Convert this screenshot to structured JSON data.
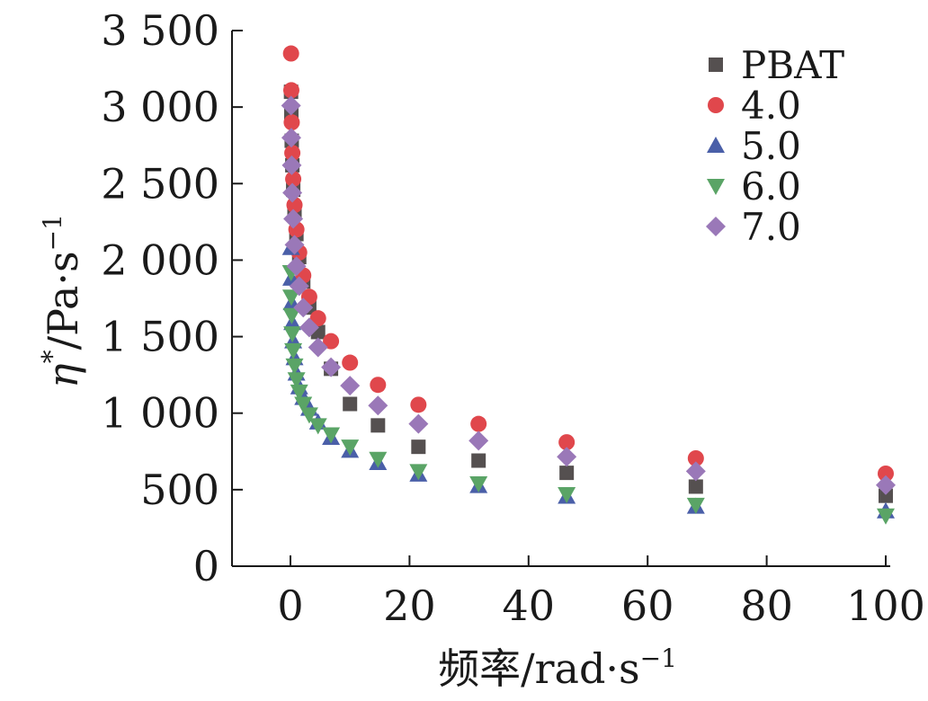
{
  "chart_data": {
    "type": "scatter",
    "xlabel": {
      "text": "频率/rad·s",
      "sup": "−1"
    },
    "ylabel": {
      "symbol": "η",
      "star": "*",
      "text": "/Pa·s",
      "sup": "−1"
    },
    "xlim": [
      -10,
      100
    ],
    "ylim": [
      0,
      3500
    ],
    "x_ticks": [
      0,
      20,
      40,
      60,
      80,
      100
    ],
    "x_tick_labels": [
      "0",
      "20",
      "40",
      "60",
      "80",
      "100"
    ],
    "y_ticks": [
      0,
      500,
      1000,
      1500,
      2000,
      2500,
      3000,
      3500
    ],
    "y_tick_labels": [
      "0",
      "500",
      "1 000",
      "1 500",
      "2 000",
      "2 500",
      "3 000",
      "3 500"
    ],
    "grid": false,
    "legend_position": "top-right",
    "x": [
      0.1,
      0.147,
      0.215,
      0.316,
      0.464,
      0.681,
      1,
      1.47,
      2.15,
      3.16,
      4.64,
      6.81,
      10,
      14.7,
      21.5,
      31.6,
      46.4,
      68.1,
      100
    ],
    "series": [
      {
        "name": "PBAT",
        "marker": "square",
        "color": "#555050",
        "values": [
          3100,
          2950,
          2780,
          2620,
          2460,
          2310,
          2170,
          2020,
          1860,
          1690,
          1530,
          1290,
          1060,
          920,
          780,
          690,
          610,
          520,
          460
        ]
      },
      {
        "name": "4.0",
        "marker": "circle",
        "color": "#e0474c",
        "values": [
          3350,
          3110,
          2900,
          2700,
          2530,
          2360,
          2200,
          2050,
          1900,
          1760,
          1620,
          1470,
          1330,
          1185,
          1055,
          930,
          810,
          705,
          605
        ]
      },
      {
        "name": "5.0",
        "marker": "triangle-up",
        "color": "#4a5fa8",
        "values": [
          2080,
          1880,
          1720,
          1590,
          1470,
          1360,
          1260,
          1170,
          1100,
          1030,
          940,
          840,
          755,
          675,
          600,
          525,
          455,
          390,
          360
        ]
      },
      {
        "name": "6.0",
        "marker": "triangle-down",
        "color": "#5aa466",
        "values": [
          1920,
          1760,
          1640,
          1520,
          1410,
          1310,
          1220,
          1140,
          1060,
          990,
          920,
          860,
          780,
          700,
          620,
          540,
          470,
          400,
          330
        ]
      },
      {
        "name": "7.0",
        "marker": "diamond",
        "color": "#9a78b8",
        "values": [
          3010,
          2800,
          2620,
          2440,
          2270,
          2100,
          1960,
          1830,
          1690,
          1560,
          1430,
          1300,
          1180,
          1050,
          930,
          820,
          715,
          620,
          530
        ]
      }
    ]
  }
}
